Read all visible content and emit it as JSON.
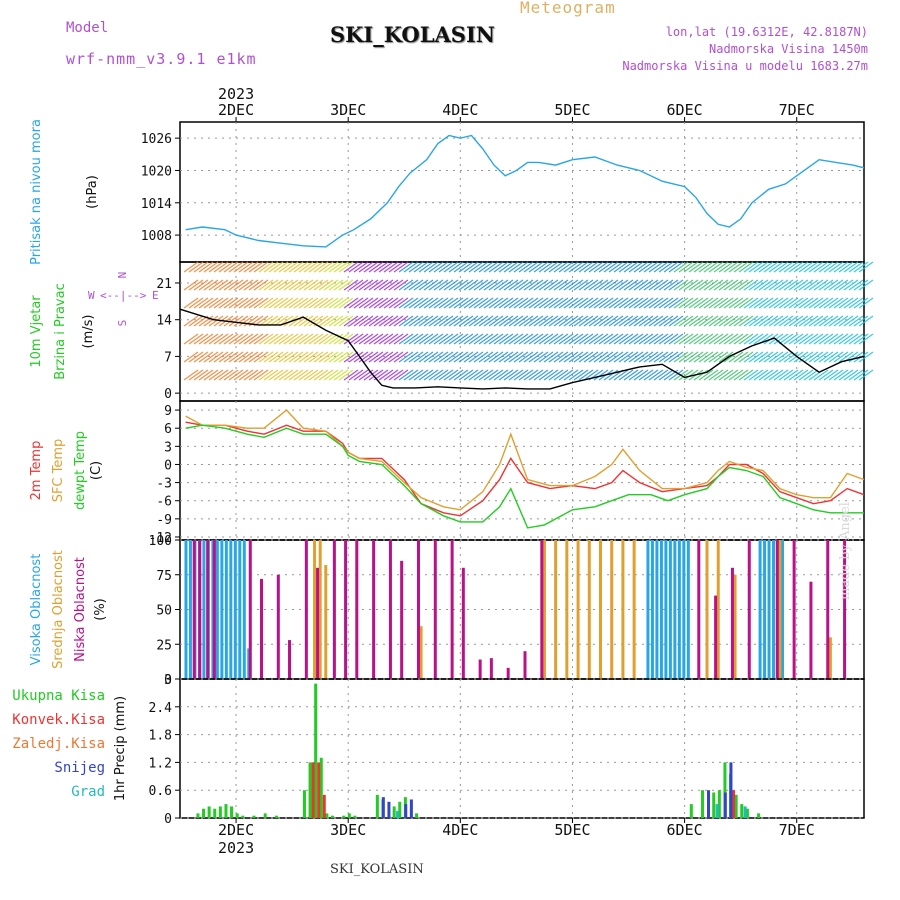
{
  "header": {
    "model_label": "Model",
    "model_name": "wrf-nmm_v3.9.1 e1km",
    "product": "Meteogram",
    "station": "SKI_KOLASIN",
    "lonlat": "lon,lat (19.6312E, 42.8187N)",
    "elevation": "Nadmorska Visina 1450m",
    "elevation_model": "Nadmorska Visina u modelu 1683.27m",
    "footer_station": "SKI_KOLASIN",
    "watermark": "made by Angel"
  },
  "colors": {
    "pressure": "#29a6e6",
    "temp2m": "#ee3333",
    "sfc_temp": "#e0a030",
    "dewpoint": "#22cc22",
    "cloud_high": "#29a6e6",
    "cloud_mid": "#e0a030",
    "cloud_low": "#bb1188",
    "precip_total": "#22cc22",
    "precip_conv": "#ee3333",
    "precip_strat": "#ee7733",
    "snow": "#3344cc",
    "graupel": "#22bbbb",
    "model_text": "#b050d0",
    "title_text": "#e0b060"
  },
  "chart_data": [
    {
      "id": "pressure",
      "type": "line",
      "title": "",
      "ylabel_lines": [
        "Pritisak na nivou mora",
        "(hPa)"
      ],
      "ylim": [
        1003,
        1029
      ],
      "yticks": [
        1008,
        1014,
        1020,
        1026
      ],
      "x_unit": "days since 2023-12-02 00:00",
      "series": [
        {
          "color_key": "pressure",
          "x": [
            -0.45,
            -0.3,
            -0.1,
            0.0,
            0.2,
            0.4,
            0.6,
            0.8,
            0.95,
            1.05,
            1.2,
            1.35,
            1.45,
            1.55,
            1.7,
            1.8,
            1.9,
            2.0,
            2.1,
            2.2,
            2.3,
            2.4,
            2.5,
            2.6,
            2.7,
            2.85,
            3.0,
            3.2,
            3.4,
            3.6,
            3.8,
            3.9,
            4.0,
            4.1,
            4.2,
            4.3,
            4.4,
            4.5,
            4.6,
            4.75,
            4.9,
            5.0,
            5.1,
            5.2,
            5.35,
            5.5,
            5.6
          ],
          "values": [
            1009,
            1009.5,
            1009,
            1008,
            1007,
            1006.5,
            1006,
            1005.8,
            1008,
            1009,
            1011,
            1014,
            1017,
            1019.5,
            1022,
            1025,
            1026.5,
            1026,
            1026.5,
            1024,
            1021,
            1019,
            1020,
            1021.5,
            1021.5,
            1021,
            1022,
            1022.5,
            1021,
            1020,
            1018,
            1017.5,
            1017,
            1015,
            1012,
            1010,
            1009.5,
            1011,
            1014,
            1016.5,
            1017.5,
            1019,
            1020.5,
            1022,
            1021.5,
            1021,
            1020.5
          ]
        }
      ]
    },
    {
      "id": "wind",
      "type": "line",
      "title": "",
      "ylabel_lines": [
        "10m Vjetar",
        "Brzina i Pravac",
        "(m/s)"
      ],
      "compass": [
        "N",
        "W",
        "E",
        "S",
        "<--|-->"
      ],
      "ylim": [
        -1.5,
        25
      ],
      "yticks": [
        0,
        7,
        14,
        21
      ],
      "x_unit": "days since 2023-12-02 00:00",
      "series": [
        {
          "color_key": "wind_speed",
          "x": [
            -0.5,
            -0.2,
            0.0,
            0.2,
            0.4,
            0.6,
            0.8,
            1.0,
            1.1,
            1.2,
            1.3,
            1.4,
            1.6,
            1.8,
            2.0,
            2.2,
            2.4,
            2.6,
            2.8,
            3.0,
            3.2,
            3.4,
            3.6,
            3.8,
            4.0,
            4.2,
            4.4,
            4.6,
            4.8,
            5.0,
            5.2,
            5.4,
            5.6
          ],
          "values": [
            16,
            14,
            13.5,
            13,
            13,
            14.5,
            12,
            10,
            7,
            4,
            1.5,
            1,
            1,
            1.2,
            1,
            0.8,
            1,
            0.8,
            0.8,
            2,
            3,
            4,
            5,
            5.5,
            3,
            4,
            7,
            9,
            10.5,
            7,
            4,
            6,
            7
          ]
        }
      ]
    },
    {
      "id": "temperature",
      "type": "line",
      "title": "",
      "ylabel_lines": [
        "2m Temp",
        "SFC Temp",
        "dewpt Temp",
        "(C)"
      ],
      "ylim": [
        -12.5,
        10.5
      ],
      "yticks": [
        -12,
        -9,
        -6,
        -3,
        0,
        3,
        6,
        9
      ],
      "x_unit": "days since 2023-12-02 00:00",
      "series": [
        {
          "name": "2m Temp",
          "color_key": "temp2m",
          "x": [
            -0.45,
            -0.3,
            -0.1,
            0.1,
            0.25,
            0.45,
            0.6,
            0.8,
            0.95,
            1.0,
            1.1,
            1.3,
            1.5,
            1.65,
            1.85,
            2.0,
            2.2,
            2.35,
            2.45,
            2.6,
            2.8,
            3.0,
            3.2,
            3.35,
            3.45,
            3.6,
            3.8,
            4.0,
            4.2,
            4.3,
            4.4,
            4.55,
            4.7,
            4.85,
            5.0,
            5.15,
            5.3,
            5.45,
            5.6
          ],
          "values": [
            7,
            6.5,
            6.5,
            5.5,
            5,
            6.5,
            5.5,
            5.5,
            3.5,
            2,
            1,
            1,
            -2.5,
            -6.5,
            -8,
            -8.5,
            -6,
            -2.5,
            1,
            -3,
            -4,
            -3.5,
            -4,
            -3,
            -1,
            -3,
            -4.5,
            -4,
            -3.5,
            -2,
            0,
            0,
            -1.5,
            -4.5,
            -5.5,
            -6.5,
            -6,
            -4,
            -5
          ]
        },
        {
          "name": "SFC Temp",
          "color_key": "sfc_temp",
          "x": [
            -0.45,
            -0.3,
            -0.1,
            0.1,
            0.25,
            0.45,
            0.6,
            0.8,
            0.95,
            1.0,
            1.1,
            1.3,
            1.5,
            1.65,
            1.85,
            2.0,
            2.2,
            2.35,
            2.45,
            2.6,
            2.8,
            3.0,
            3.2,
            3.35,
            3.45,
            3.6,
            3.8,
            4.0,
            4.2,
            4.3,
            4.4,
            4.55,
            4.7,
            4.85,
            5.0,
            5.15,
            5.3,
            5.45,
            5.6
          ],
          "values": [
            8,
            6.5,
            6.5,
            6,
            6,
            9,
            6,
            5.5,
            3,
            2,
            1,
            0.5,
            -3,
            -5.5,
            -7,
            -7.5,
            -4.5,
            0,
            5,
            -2.5,
            -3.5,
            -3.5,
            -2,
            0,
            2.5,
            -1,
            -4,
            -4,
            -3,
            -1,
            0.5,
            -0.5,
            -1,
            -4,
            -5,
            -5.5,
            -5.5,
            -1.5,
            -2.5
          ]
        },
        {
          "name": "dewpt Temp",
          "color_key": "dewpoint",
          "x": [
            -0.45,
            -0.3,
            -0.1,
            0.1,
            0.25,
            0.45,
            0.6,
            0.8,
            0.95,
            1.0,
            1.1,
            1.3,
            1.5,
            1.65,
            1.85,
            2.0,
            2.2,
            2.35,
            2.45,
            2.6,
            2.75,
            3.0,
            3.2,
            3.35,
            3.5,
            3.7,
            3.85,
            4.0,
            4.2,
            4.3,
            4.4,
            4.55,
            4.7,
            4.85,
            5.0,
            5.15,
            5.3,
            5.45,
            5.6
          ],
          "values": [
            6,
            6.5,
            6,
            5,
            4.5,
            6,
            5,
            5,
            3,
            1.5,
            0.5,
            0,
            -3.5,
            -6.5,
            -8.5,
            -9.5,
            -9.5,
            -7,
            -4,
            -10.5,
            -10,
            -7.5,
            -7,
            -6,
            -5,
            -5,
            -6,
            -5,
            -4,
            -2,
            -0.5,
            -1,
            -2,
            -5.5,
            -6.5,
            -7.5,
            -8,
            -8,
            -8
          ]
        }
      ]
    },
    {
      "id": "clouds",
      "type": "bar",
      "title": "",
      "ylabel_lines": [
        "Visoka Oblacnost",
        "Srednja Oblacnost",
        "Niska Oblacnost",
        "(%)"
      ],
      "ylim": [
        0,
        100
      ],
      "yticks": [
        0,
        25,
        50,
        75,
        100
      ],
      "x_unit": "days since 2023-12-02 00:00",
      "series": [
        {
          "name": "Visoka Oblacnost",
          "color_key": "cloud_high",
          "x": [
            -0.42,
            -0.38,
            -0.34,
            -0.3,
            -0.26,
            -0.22,
            -0.18,
            -0.14,
            -0.1,
            -0.06,
            -0.02,
            0.02,
            0.06,
            0.1,
            0.14,
            3.7,
            3.74,
            3.78,
            3.82,
            3.86,
            3.9,
            3.94,
            3.98,
            4.02,
            4.06,
            4.7,
            4.74,
            4.78,
            4.82,
            4.86,
            4.9
          ],
          "values": [
            100,
            100,
            100,
            100,
            100,
            100,
            100,
            100,
            100,
            100,
            100,
            100,
            100,
            100,
            22,
            100,
            100,
            100,
            100,
            100,
            100,
            100,
            100,
            100,
            100,
            100,
            100,
            100,
            100,
            100,
            100
          ]
        },
        {
          "name": "Srednja Oblacnost",
          "color_key": "cloud_mid",
          "x": [
            0.7,
            0.75,
            0.8,
            1.65,
            2.75,
            2.85,
            2.95,
            3.05,
            3.15,
            3.25,
            3.35,
            3.45,
            3.55,
            4.2,
            4.3,
            4.45,
            4.85,
            5.3
          ],
          "values": [
            100,
            100,
            82,
            38,
            100,
            100,
            100,
            100,
            100,
            100,
            100,
            100,
            100,
            100,
            100,
            75,
            100,
            30
          ]
        },
        {
          "name": "Niska Oblacnost",
          "color_key": "cloud_low",
          "x": [
            -0.4,
            -0.35,
            -0.28,
            -0.22,
            0.1,
            0.2,
            0.35,
            0.45,
            0.6,
            0.7,
            0.85,
            0.95,
            1.05,
            1.2,
            1.35,
            1.45,
            1.6,
            1.75,
            1.9,
            2.0,
            2.15,
            2.25,
            2.4,
            2.55,
            2.7,
            4.1,
            4.25,
            4.4,
            4.55,
            4.8,
            4.95,
            5.1,
            5.25,
            5.4
          ],
          "values": [
            100,
            100,
            100,
            100,
            100,
            72,
            75,
            28,
            100,
            80,
            100,
            100,
            100,
            100,
            100,
            85,
            100,
            100,
            100,
            80,
            14,
            15,
            8,
            20,
            100,
            100,
            60,
            80,
            100,
            100,
            100,
            70,
            100,
            100
          ]
        }
      ]
    },
    {
      "id": "precip",
      "type": "bar",
      "title": "",
      "ylabel_lines": [
        "1hr Precip (mm)"
      ],
      "legend": [
        "Ukupna Kisa",
        "Konvek.Kisa",
        "Zaledj.Kisa",
        "Snijeg",
        "Grad"
      ],
      "ylim": [
        0,
        3
      ],
      "yticks": [
        0,
        0.6,
        1.2,
        1.8,
        2.4,
        3
      ],
      "x_unit": "days since 2023-12-02 00:00",
      "series": [
        {
          "name": "Ukupna Kisa",
          "color_key": "precip_total",
          "x": [
            -0.3,
            -0.25,
            -0.2,
            -0.15,
            -0.1,
            -0.05,
            0.0,
            0.05,
            0.1,
            0.2,
            0.3,
            0.4,
            0.65,
            0.7,
            0.75,
            0.8,
            0.85,
            0.9,
            1.0,
            1.05,
            1.1,
            1.3,
            1.35,
            1.45,
            1.5,
            1.55,
            1.65,
            4.1,
            4.2,
            4.3,
            4.35,
            4.4,
            4.45,
            4.5,
            4.55,
            4.6,
            4.7
          ],
          "values": [
            0.1,
            0.2,
            0.25,
            0.2,
            0.25,
            0.3,
            0.25,
            0.1,
            0.05,
            0.05,
            0.1,
            0.05,
            0.6,
            1.2,
            2.9,
            1.3,
            0.1,
            0.05,
            0.05,
            0.1,
            0.05,
            0.5,
            0.4,
            0.25,
            0.35,
            0.45,
            0.1,
            0.3,
            0.6,
            0.55,
            0.6,
            1.2,
            0.95,
            0.5,
            0.3,
            0.2,
            0.1
          ]
        },
        {
          "name": "Konvek.Kisa",
          "color_key": "precip_conv",
          "x": [
            0.7,
            0.75,
            0.8,
            4.45
          ],
          "values": [
            1.2,
            1.2,
            0.5,
            0.6
          ]
        },
        {
          "name": "Snijeg",
          "color_key": "snow",
          "x": [
            1.3,
            1.35,
            1.5,
            1.55,
            4.2,
            4.35,
            4.4
          ],
          "values": [
            0.45,
            0.35,
            0.3,
            0.4,
            0.6,
            0.55,
            1.2
          ]
        },
        {
          "name": "Grad",
          "color_key": "graupel",
          "x": [
            1.4,
            4.25,
            4.5
          ],
          "values": [
            0.15,
            0.3,
            0.25
          ]
        }
      ]
    }
  ],
  "x_axis": {
    "categories": [
      "2DEC",
      "3DEC",
      "4DEC",
      "5DEC",
      "6DEC",
      "7DEC"
    ],
    "year": "2023"
  },
  "wind_barbs_note": ""
}
